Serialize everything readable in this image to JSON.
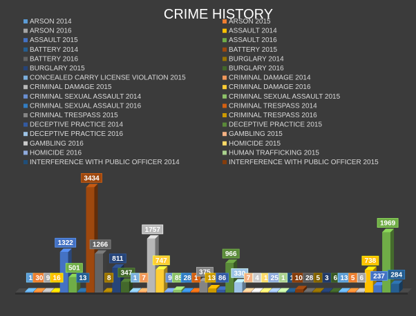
{
  "chart_data": {
    "type": "bar",
    "title": "CRIME HISTORY",
    "xlabel": "",
    "ylabel": "",
    "legend_position": "top",
    "grid": false,
    "three_d": true,
    "ylim": [
      0,
      3600
    ],
    "series": [
      {
        "name": "ARSON 2014",
        "value": 1,
        "color": "#5b9bd5"
      },
      {
        "name": "ARSON 2015",
        "value": 30,
        "color": "#ed7d31"
      },
      {
        "name": "ARSON 2016",
        "value": 9,
        "color": "#a5a5a5"
      },
      {
        "name": "ASSAULT 2014",
        "value": 16,
        "color": "#ffc000"
      },
      {
        "name": "ASSAULT 2015",
        "value": 1322,
        "color": "#4472c4"
      },
      {
        "name": "ASSAULT 2016",
        "value": 501,
        "color": "#70ad47"
      },
      {
        "name": "BATTERY 2014",
        "value": 13,
        "color": "#255e91"
      },
      {
        "name": "BATTERY 2015",
        "value": 3434,
        "color": "#9e480e"
      },
      {
        "name": "BATTERY 2016",
        "value": 1266,
        "color": "#636363"
      },
      {
        "name": "BURGLARY 2014",
        "value": 8,
        "color": "#997300"
      },
      {
        "name": "BURGLARY 2015",
        "value": 811,
        "color": "#264478"
      },
      {
        "name": "BURGLARY 2016",
        "value": 347,
        "color": "#43682b"
      },
      {
        "name": "CONCEALED CARRY LICENSE VIOLATION 2015",
        "value": 1,
        "color": "#7cafdd"
      },
      {
        "name": "CRIMINAL DAMAGE 2014",
        "value": 7,
        "color": "#f1975a"
      },
      {
        "name": "CRIMINAL DAMAGE 2015",
        "value": 1757,
        "color": "#b7b7b7"
      },
      {
        "name": "CRIMINAL DAMAGE 2016",
        "value": 747,
        "color": "#ffcd33"
      },
      {
        "name": "CRIMINAL SEXUAL ASSAULT 2014",
        "value": 9,
        "color": "#698ed0"
      },
      {
        "name": "CRIMINAL SEXUAL ASSAULT 2015",
        "value": 85,
        "color": "#8cc168"
      },
      {
        "name": "CRIMINAL SEXUAL ASSAULT 2016",
        "value": 28,
        "color": "#327dc2"
      },
      {
        "name": "CRIMINAL TRESPASS 2014",
        "value": 1,
        "color": "#d26012"
      },
      {
        "name": "CRIMINAL TRESPASS 2015",
        "value": 375,
        "color": "#848484"
      },
      {
        "name": "CRIMINAL TRESPASS 2016",
        "value": 135,
        "color": "#cc9a00"
      },
      {
        "name": "DECEPTIVE PRACTICE 2014",
        "value": 86,
        "color": "#335aa1"
      },
      {
        "name": "DECEPTIVE PRACTICE 2015",
        "value": 966,
        "color": "#5a8a39"
      },
      {
        "name": "DECEPTIVE PRACTICE 2016",
        "value": 330,
        "color": "#9dc3e6"
      },
      {
        "name": "GAMBLING 2015",
        "value": 7,
        "color": "#f4b183"
      },
      {
        "name": "GAMBLING 2016",
        "value": 4,
        "color": "#c9c9c9"
      },
      {
        "name": "HOMICIDE 2015",
        "value": 1,
        "color": "#ffd966"
      },
      {
        "name": "HOMICIDE 2016",
        "value": 25,
        "color": "#8faadc"
      },
      {
        "name": "HUMAN TRAFFICKING 2015",
        "value": 1,
        "color": "#a9d18e"
      },
      {
        "name": "INTERFERENCE WITH PUBLIC OFFICER 2014",
        "value": 1,
        "color": "#1f4e79"
      },
      {
        "name": "INTERFERENCE WITH PUBLIC OFFICER 2015",
        "value": 108,
        "color": "#843c0c"
      },
      {
        "name": "",
        "value": 28,
        "color": "#595959"
      },
      {
        "name": "",
        "value": 5,
        "color": "#7f6000"
      },
      {
        "name": "",
        "value": 3,
        "color": "#203864"
      },
      {
        "name": "",
        "value": 6,
        "color": "#385723"
      },
      {
        "name": "",
        "value": 13,
        "color": "#5b9bd5"
      },
      {
        "name": "",
        "value": 5,
        "color": "#ed7d31"
      },
      {
        "name": "",
        "value": 6,
        "color": "#a5a5a5"
      },
      {
        "name": "",
        "value": 738,
        "color": "#ffc000"
      },
      {
        "name": "",
        "value": 237,
        "color": "#4472c4"
      },
      {
        "name": "",
        "value": 1969,
        "color": "#70ad47"
      },
      {
        "name": "",
        "value": 284,
        "color": "#255e91"
      }
    ]
  }
}
